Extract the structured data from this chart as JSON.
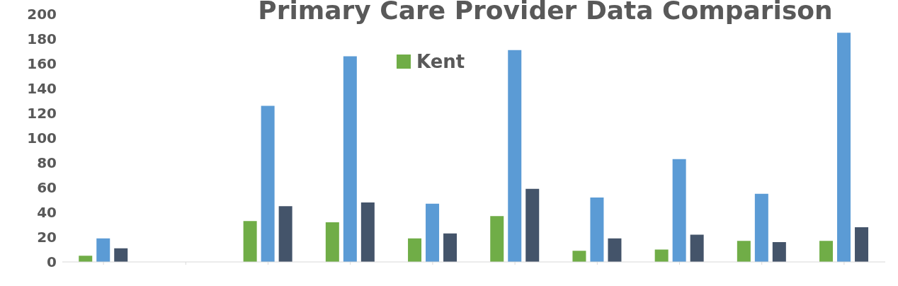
{
  "chart_data": {
    "type": "bar",
    "title": "Primary Care Provider Data Comparison",
    "categories": [
      null,
      null,
      null,
      null,
      null,
      null,
      null,
      null,
      null,
      null
    ],
    "series": [
      {
        "name": "Kent",
        "color": "#70ad47",
        "values": [
          5,
          0,
          33,
          32,
          19,
          37,
          9,
          10,
          17,
          17
        ]
      },
      {
        "color": "#5b9bd5",
        "values": [
          19,
          0,
          126,
          166,
          47,
          171,
          52,
          83,
          55,
          185
        ]
      },
      {
        "color": "#44546a",
        "values": [
          11,
          0,
          45,
          48,
          23,
          59,
          19,
          22,
          16,
          28
        ]
      }
    ],
    "ylim": [
      0,
      200
    ],
    "yticks": [
      0,
      20,
      40,
      60,
      80,
      100,
      120,
      140,
      160,
      180,
      200
    ],
    "grid": false,
    "legend": "top"
  }
}
